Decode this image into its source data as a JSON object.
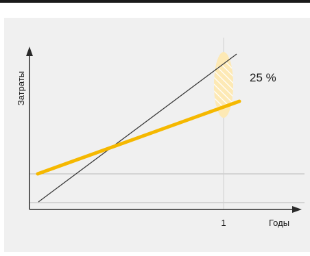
{
  "chart_data": {
    "type": "line",
    "ylabel": "Затраты",
    "xlabel": "Годы",
    "x_ticks": [
      "1"
    ],
    "annotation": "25 %",
    "grid": "partial",
    "series": [
      {
        "color": "#3a3a3a"
      },
      {
        "color": "#f5b800"
      }
    ],
    "colors": {
      "axis": "#2a2a2a",
      "gridline": "#b8b8b8",
      "highlight": "#fde9b5",
      "background": "#f0f0f0"
    }
  }
}
